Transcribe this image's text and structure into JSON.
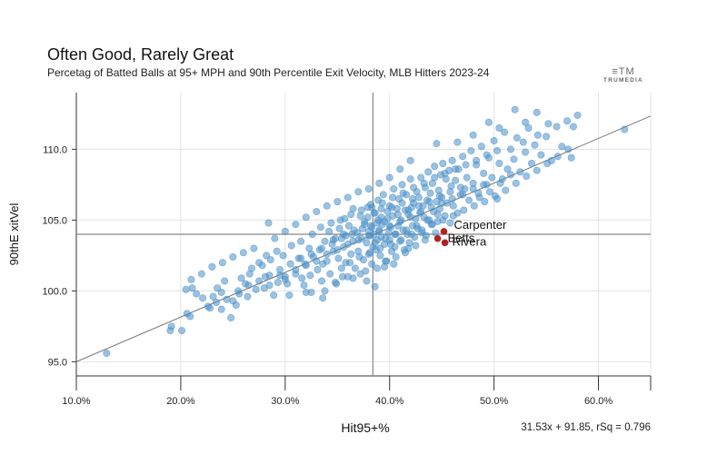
{
  "header": {
    "title": "Often Good, Rarely Great",
    "subtitle": "Percetag of Batted Balls at 95+ MPH and 90th Percentile Exit Velocity, MLB Hitters 2023-24",
    "brand_mark": "≡TM",
    "brand_text": "TRUMEDIA"
  },
  "footer": {
    "equation": "31.53x + 91.85, rSq = 0.796"
  },
  "chart_data": {
    "type": "scatter",
    "title": "Often Good, Rarely Great",
    "xlabel": "Hit95+%",
    "ylabel": "90thE xitVel",
    "xlim": [
      10,
      65
    ],
    "ylim": [
      94,
      114
    ],
    "x_ticks": [
      10,
      20,
      30,
      40,
      50,
      60
    ],
    "x_tick_labels": [
      "10.0%",
      "20.0%",
      "30.0%",
      "40.0%",
      "50.0%",
      "60.0%"
    ],
    "y_ticks": [
      95,
      100,
      105,
      110
    ],
    "y_tick_labels": [
      "95.0",
      "100.0",
      "105.0",
      "110.0"
    ],
    "grid": true,
    "reference_lines": {
      "x_mean": 38.4,
      "y_mean": 104.0
    },
    "trendline": {
      "slope": 31.53,
      "intercept": 91.85,
      "rsq": 0.796
    },
    "point_color": "#4a90c8",
    "highlight_color": "#b22222",
    "points": [
      [
        12.9,
        95.6
      ],
      [
        19.0,
        97.2
      ],
      [
        19.1,
        97.5
      ],
      [
        20.1,
        97.2
      ],
      [
        20.6,
        98.4
      ],
      [
        20.5,
        100.1
      ],
      [
        21.1,
        100.2
      ],
      [
        21.5,
        99.8
      ],
      [
        20.9,
        98.2
      ],
      [
        22.1,
        99.5
      ],
      [
        22.8,
        98.8
      ],
      [
        23.1,
        99.6
      ],
      [
        23.4,
        99.2
      ],
      [
        23.9,
        98.7
      ],
      [
        23.9,
        99.9
      ],
      [
        24.4,
        99.4
      ],
      [
        24.8,
        98.1
      ],
      [
        25.0,
        99.3
      ],
      [
        25.6,
        99.8
      ],
      [
        26.2,
        100.5
      ],
      [
        26.6,
        101.2
      ],
      [
        27.2,
        100.1
      ],
      [
        27.5,
        102.0
      ],
      [
        28.1,
        101.0
      ],
      [
        28.2,
        102.5
      ],
      [
        28.5,
        100.4
      ],
      [
        28.9,
        99.7
      ],
      [
        29.5,
        101.1
      ],
      [
        29.8,
        102.5
      ],
      [
        30.0,
        101.0
      ],
      [
        30.2,
        100.5
      ],
      [
        30.4,
        99.7
      ],
      [
        31.0,
        101.5
      ],
      [
        31.3,
        102.3
      ],
      [
        31.6,
        100.9
      ],
      [
        31.9,
        101.9
      ],
      [
        32.0,
        99.9
      ],
      [
        32.3,
        103.0
      ],
      [
        32.4,
        101.1
      ],
      [
        32.7,
        102.4
      ],
      [
        33.1,
        101.5
      ],
      [
        33.3,
        102.9
      ],
      [
        33.6,
        101.9
      ],
      [
        33.5,
        100.7
      ],
      [
        33.6,
        99.5
      ],
      [
        33.8,
        103.5
      ],
      [
        34.0,
        102.1
      ],
      [
        34.2,
        104.2
      ],
      [
        34.3,
        101.2
      ],
      [
        34.6,
        102.8
      ],
      [
        34.8,
        103.7
      ],
      [
        34.9,
        100.5
      ],
      [
        35.1,
        102.3
      ],
      [
        35.2,
        104.4
      ],
      [
        35.4,
        101.6
      ],
      [
        35.6,
        103.1
      ],
      [
        35.7,
        105.1
      ],
      [
        35.8,
        102.0
      ],
      [
        35.8,
        103.9
      ],
      [
        36.0,
        101.0
      ],
      [
        36.1,
        104.6
      ],
      [
        36.3,
        102.6
      ],
      [
        36.5,
        103.5
      ],
      [
        36.5,
        105.8
      ],
      [
        36.7,
        101.6
      ],
      [
        36.9,
        104.1
      ],
      [
        37.0,
        102.8
      ],
      [
        37.2,
        105.3
      ],
      [
        37.3,
        103.7
      ],
      [
        37.5,
        102.2
      ],
      [
        37.6,
        104.7
      ],
      [
        37.7,
        101.4
      ],
      [
        37.8,
        103.4
      ],
      [
        37.9,
        105.9
      ],
      [
        38.0,
        102.6
      ],
      [
        38.0,
        104.2
      ],
      [
        38.1,
        103.9
      ],
      [
        38.2,
        106.1
      ],
      [
        38.3,
        101.9
      ],
      [
        38.3,
        104.5
      ],
      [
        38.4,
        103.1
      ],
      [
        38.5,
        104.0
      ],
      [
        38.6,
        105.5
      ],
      [
        38.7,
        102.9
      ],
      [
        38.8,
        104.8
      ],
      [
        38.8,
        103.6
      ],
      [
        38.9,
        106.4
      ],
      [
        39.0,
        104.3
      ],
      [
        39.1,
        102.5
      ],
      [
        39.2,
        105.2
      ],
      [
        39.2,
        103.8
      ],
      [
        39.3,
        104.7
      ],
      [
        39.4,
        106.8
      ],
      [
        39.5,
        103.3
      ],
      [
        39.5,
        104.9
      ],
      [
        39.7,
        102.1
      ],
      [
        39.8,
        105.6
      ],
      [
        39.9,
        104.1
      ],
      [
        40.0,
        103.6
      ],
      [
        40.0,
        106.0
      ],
      [
        40.1,
        104.5
      ],
      [
        40.2,
        102.8
      ],
      [
        40.3,
        105.3
      ],
      [
        40.4,
        107.2
      ],
      [
        40.5,
        104.0
      ],
      [
        40.5,
        103.1
      ],
      [
        40.7,
        105.8
      ],
      [
        40.8,
        104.6
      ],
      [
        40.9,
        106.5
      ],
      [
        41.0,
        103.5
      ],
      [
        41.1,
        105.0
      ],
      [
        41.2,
        107.5
      ],
      [
        41.3,
        104.3
      ],
      [
        41.4,
        102.9
      ],
      [
        41.5,
        105.7
      ],
      [
        41.6,
        106.8
      ],
      [
        41.7,
        104.0
      ],
      [
        41.8,
        105.4
      ],
      [
        41.9,
        103.4
      ],
      [
        42.0,
        107.9
      ],
      [
        42.1,
        105.9
      ],
      [
        42.2,
        104.6
      ],
      [
        42.3,
        106.2
      ],
      [
        42.4,
        103.8
      ],
      [
        42.5,
        105.1
      ],
      [
        42.6,
        107.0
      ],
      [
        42.7,
        104.4
      ],
      [
        42.8,
        106.6
      ],
      [
        42.9,
        105.5
      ],
      [
        43.0,
        108.0
      ],
      [
        43.1,
        104.1
      ],
      [
        43.2,
        106.0
      ],
      [
        43.3,
        105.2
      ],
      [
        43.4,
        107.3
      ],
      [
        43.5,
        103.9
      ],
      [
        43.6,
        106.4
      ],
      [
        43.7,
        108.4
      ],
      [
        43.8,
        105.0
      ],
      [
        43.9,
        106.9
      ],
      [
        44.0,
        104.7
      ],
      [
        44.1,
        107.6
      ],
      [
        44.2,
        105.6
      ],
      [
        44.3,
        108.8
      ],
      [
        44.5,
        106.3
      ],
      [
        44.6,
        104.9
      ],
      [
        44.7,
        107.1
      ],
      [
        44.8,
        105.8
      ],
      [
        44.9,
        108.2
      ],
      [
        45.0,
        106.6
      ],
      [
        45.1,
        109.0
      ],
      [
        45.3,
        105.3
      ],
      [
        45.4,
        107.9
      ],
      [
        45.5,
        106.2
      ],
      [
        45.7,
        108.5
      ],
      [
        45.8,
        104.8
      ],
      [
        45.9,
        107.4
      ],
      [
        46.0,
        109.2
      ],
      [
        46.1,
        106.0
      ],
      [
        46.3,
        107.8
      ],
      [
        46.5,
        105.5
      ],
      [
        46.6,
        108.6
      ],
      [
        46.8,
        106.8
      ],
      [
        47.0,
        109.5
      ],
      [
        47.2,
        107.2
      ],
      [
        47.4,
        108.0
      ],
      [
        47.6,
        106.4
      ],
      [
        47.8,
        109.9
      ],
      [
        48.0,
        107.6
      ],
      [
        48.3,
        108.9
      ],
      [
        48.5,
        106.9
      ],
      [
        48.8,
        110.2
      ],
      [
        49.0,
        108.3
      ],
      [
        49.3,
        107.5
      ],
      [
        49.5,
        109.4
      ],
      [
        49.8,
        108.0
      ],
      [
        50.0,
        110.6
      ],
      [
        50.3,
        106.5
      ],
      [
        50.5,
        109.0
      ],
      [
        50.8,
        107.9
      ],
      [
        51.0,
        111.2
      ],
      [
        51.3,
        108.6
      ],
      [
        51.6,
        110.0
      ],
      [
        51.9,
        109.3
      ],
      [
        52.2,
        110.8
      ],
      [
        52.5,
        108.4
      ],
      [
        52.8,
        110.5
      ],
      [
        53.0,
        109.8
      ],
      [
        53.3,
        111.5
      ],
      [
        53.6,
        109.0
      ],
      [
        53.9,
        110.3
      ],
      [
        54.2,
        111.0
      ],
      [
        54.5,
        109.6
      ],
      [
        55.0,
        110.9
      ],
      [
        55.5,
        109.2
      ],
      [
        56.0,
        111.6
      ],
      [
        56.5,
        110.2
      ],
      [
        57.0,
        112.0
      ],
      [
        57.4,
        109.4
      ],
      [
        58.0,
        112.4
      ],
      [
        52.0,
        112.8
      ],
      [
        54.1,
        112.6
      ],
      [
        53.0,
        111.9
      ],
      [
        55.2,
        111.8
      ],
      [
        57.6,
        111.6
      ],
      [
        62.5,
        111.4
      ],
      [
        49.5,
        111.9
      ],
      [
        48.0,
        111.0
      ],
      [
        46.5,
        110.5
      ],
      [
        50.5,
        111.5
      ],
      [
        44.5,
        110.4
      ],
      [
        42.0,
        109.2
      ],
      [
        41.0,
        108.6
      ],
      [
        40.0,
        108.0
      ],
      [
        39.0,
        107.6
      ],
      [
        38.0,
        107.2
      ],
      [
        37.0,
        107.0
      ],
      [
        36.0,
        106.6
      ],
      [
        35.0,
        106.3
      ],
      [
        34.0,
        106.0
      ],
      [
        33.0,
        105.6
      ],
      [
        32.0,
        105.2
      ],
      [
        31.0,
        104.7
      ],
      [
        30.0,
        104.2
      ],
      [
        29.0,
        103.7
      ],
      [
        28.4,
        104.8
      ],
      [
        27.0,
        103.0
      ],
      [
        26.0,
        102.7
      ],
      [
        25.0,
        102.4
      ],
      [
        24.0,
        102.0
      ],
      [
        23.0,
        101.7
      ],
      [
        22.0,
        101.2
      ],
      [
        21.0,
        100.8
      ],
      [
        23.5,
        100.2
      ],
      [
        24.2,
        100.7
      ],
      [
        25.8,
        100.9
      ],
      [
        26.8,
        101.6
      ],
      [
        27.8,
        101.8
      ],
      [
        28.6,
        102.2
      ],
      [
        29.2,
        102.8
      ],
      [
        30.6,
        103.2
      ],
      [
        31.5,
        103.5
      ],
      [
        32.6,
        104.0
      ],
      [
        33.4,
        104.5
      ],
      [
        34.4,
        104.8
      ],
      [
        35.3,
        105.0
      ],
      [
        36.3,
        105.4
      ],
      [
        37.3,
        105.7
      ],
      [
        38.3,
        105.9
      ],
      [
        39.3,
        106.2
      ],
      [
        40.3,
        106.6
      ],
      [
        41.3,
        106.9
      ],
      [
        42.3,
        107.3
      ],
      [
        43.3,
        107.6
      ],
      [
        44.3,
        108.0
      ],
      [
        45.3,
        108.3
      ],
      [
        46.3,
        108.6
      ],
      [
        47.3,
        108.9
      ],
      [
        48.3,
        109.2
      ],
      [
        49.3,
        109.6
      ],
      [
        50.3,
        109.9
      ],
      [
        30.0,
        100.8
      ],
      [
        31.0,
        101.2
      ],
      [
        32.0,
        101.8
      ],
      [
        33.0,
        102.1
      ],
      [
        34.0,
        102.6
      ],
      [
        35.0,
        102.9
      ],
      [
        36.0,
        103.3
      ],
      [
        37.0,
        103.6
      ],
      [
        38.0,
        103.9
      ],
      [
        39.0,
        104.2
      ],
      [
        40.0,
        104.6
      ],
      [
        41.0,
        104.9
      ],
      [
        42.0,
        105.2
      ],
      [
        43.0,
        105.6
      ],
      [
        44.0,
        105.9
      ],
      [
        45.0,
        106.2
      ],
      [
        46.0,
        106.5
      ],
      [
        47.0,
        106.8
      ],
      [
        48.0,
        107.2
      ],
      [
        49.0,
        107.5
      ],
      [
        36.5,
        100.9
      ],
      [
        37.2,
        101.2
      ],
      [
        38.6,
        100.3
      ],
      [
        37.8,
        100.7
      ],
      [
        39.5,
        101.7
      ],
      [
        40.6,
        102.4
      ],
      [
        41.5,
        102.7
      ],
      [
        42.5,
        103.2
      ],
      [
        43.4,
        103.6
      ],
      [
        44.4,
        104.1
      ],
      [
        33.8,
        100.0
      ],
      [
        34.8,
        100.6
      ],
      [
        35.5,
        101.0
      ],
      [
        32.5,
        99.9
      ],
      [
        31.8,
        100.4
      ],
      [
        29.3,
        100.6
      ],
      [
        28.0,
        100.2
      ],
      [
        26.4,
        99.6
      ],
      [
        25.3,
        99.0
      ],
      [
        22.6,
        98.9
      ],
      [
        38.8,
        101.6
      ],
      [
        39.6,
        102.1
      ],
      [
        40.4,
        101.9
      ],
      [
        41.8,
        103.0
      ],
      [
        36.2,
        102.0
      ],
      [
        37.1,
        102.4
      ],
      [
        38.1,
        102.7
      ],
      [
        39.1,
        103.0
      ],
      [
        40.1,
        103.3
      ],
      [
        41.1,
        103.6
      ],
      [
        42.1,
        104.0
      ],
      [
        43.1,
        104.3
      ],
      [
        44.1,
        104.7
      ],
      [
        45.1,
        105.0
      ],
      [
        46.1,
        105.3
      ],
      [
        47.1,
        105.7
      ],
      [
        48.1,
        106.0
      ],
      [
        49.1,
        106.3
      ],
      [
        50.1,
        106.7
      ],
      [
        51.1,
        107.1
      ],
      [
        52.1,
        107.6
      ],
      [
        53.1,
        108.1
      ],
      [
        54.1,
        108.5
      ],
      [
        55.1,
        109.0
      ],
      [
        56.1,
        109.5
      ],
      [
        57.1,
        110.0
      ],
      [
        51.6,
        108.2
      ],
      [
        50.6,
        107.6
      ],
      [
        49.6,
        107.0
      ],
      [
        48.6,
        106.6
      ],
      [
        35.6,
        104.0
      ],
      [
        36.6,
        104.3
      ],
      [
        37.6,
        104.9
      ],
      [
        38.6,
        103.4
      ],
      [
        39.6,
        103.7
      ],
      [
        40.6,
        104.0
      ],
      [
        41.6,
        104.3
      ],
      [
        42.6,
        104.6
      ],
      [
        43.6,
        105.0
      ],
      [
        44.6,
        105.4
      ],
      [
        34.5,
        103.3
      ],
      [
        33.5,
        103.0
      ],
      [
        32.5,
        102.6
      ],
      [
        31.5,
        102.3
      ],
      [
        30.5,
        101.9
      ],
      [
        29.5,
        101.5
      ],
      [
        28.5,
        101.1
      ],
      [
        27.5,
        100.7
      ],
      [
        26.5,
        100.4
      ],
      [
        25.5,
        100.0
      ],
      [
        38.2,
        104.6
      ],
      [
        38.9,
        105.0
      ],
      [
        39.8,
        105.1
      ],
      [
        40.8,
        105.4
      ],
      [
        41.8,
        105.7
      ],
      [
        42.8,
        106.0
      ],
      [
        43.8,
        106.3
      ],
      [
        44.8,
        106.7
      ],
      [
        45.8,
        107.0
      ],
      [
        46.8,
        107.3
      ],
      [
        37.4,
        104.4
      ],
      [
        36.4,
        104.0
      ],
      [
        35.4,
        103.7
      ],
      [
        34.6,
        103.6
      ],
      [
        37.9,
        105.2
      ],
      [
        38.5,
        105.5
      ],
      [
        39.2,
        105.8
      ],
      [
        40.2,
        105.9
      ],
      [
        41.2,
        106.2
      ],
      [
        42.2,
        106.5
      ]
    ],
    "highlighted": [
      {
        "name": "Carpenter",
        "x": 45.2,
        "y": 104.2
      },
      {
        "name": "Betts",
        "x": 44.6,
        "y": 103.7
      },
      {
        "name": "Rivera",
        "x": 45.3,
        "y": 103.4
      }
    ]
  }
}
